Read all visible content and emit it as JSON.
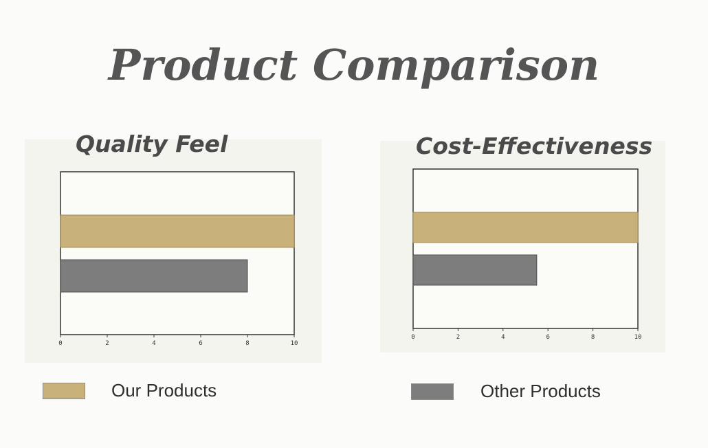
{
  "title": "Product Comparison",
  "colors": {
    "ours": "#c8b27a",
    "other": "#7d7d7d"
  },
  "legend": [
    {
      "label": "Our Products",
      "color": "#c8b27a"
    },
    {
      "label": "Other Products",
      "color": "#7d7d7d"
    }
  ],
  "chart_data": [
    {
      "type": "bar",
      "orientation": "horizontal",
      "title": "Quality Feel",
      "categories": [
        "Our Products",
        "Other Products"
      ],
      "values": [
        10,
        8
      ],
      "xlim": [
        0,
        10
      ],
      "xticks": [
        "0",
        "2",
        "4",
        "6",
        "8",
        "10"
      ],
      "grid": false
    },
    {
      "type": "bar",
      "orientation": "horizontal",
      "title": "Cost-Effectiveness",
      "categories": [
        "Our Products",
        "Other Products"
      ],
      "values": [
        10,
        5.5
      ],
      "xlim": [
        0,
        10
      ],
      "xticks": [
        "0",
        "2",
        "4",
        "6",
        "8",
        "10"
      ],
      "grid": false
    }
  ]
}
